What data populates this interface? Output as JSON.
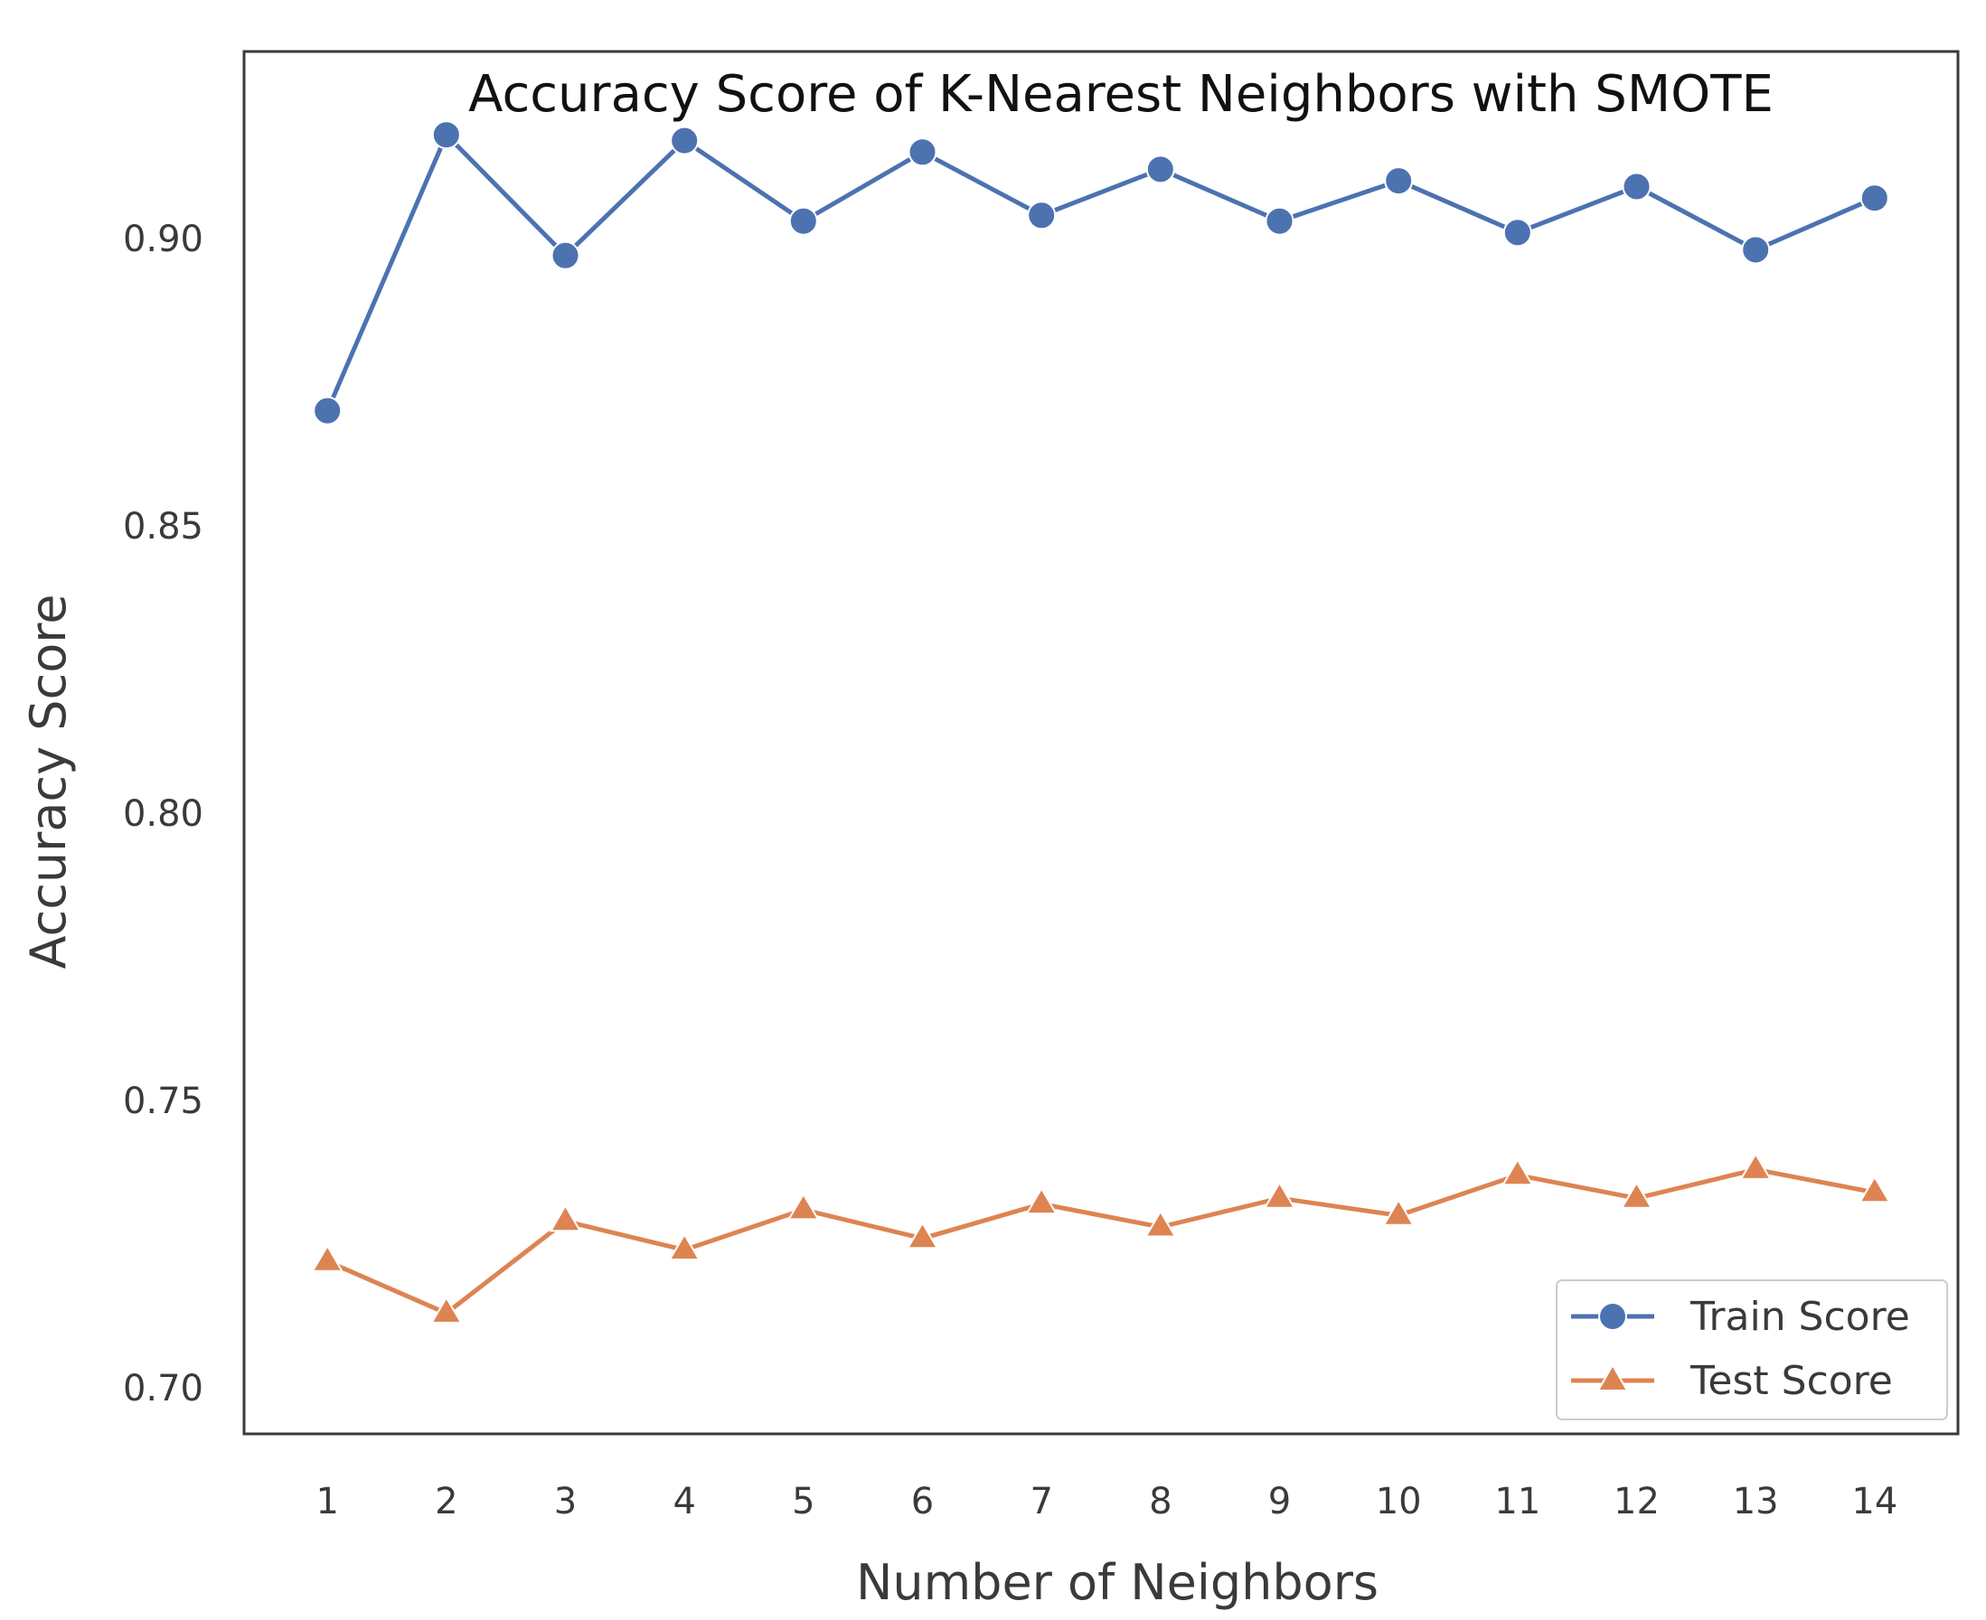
{
  "chart_data": {
    "type": "line",
    "title": "Accuracy Score of K-Nearest Neighbors with SMOTE",
    "xlabel": "Number of Neighbors",
    "ylabel": "Accuracy Score",
    "x": [
      1,
      2,
      3,
      4,
      5,
      6,
      7,
      8,
      9,
      10,
      11,
      12,
      13,
      14
    ],
    "x_tick_labels": [
      "1",
      "2",
      "3",
      "4",
      "5",
      "6",
      "7",
      "8",
      "9",
      "10",
      "11",
      "12",
      "13",
      "14"
    ],
    "y_ticks": [
      0.7,
      0.75,
      0.8,
      0.85,
      0.9
    ],
    "y_tick_labels": [
      "0.70",
      "0.75",
      "0.80",
      "0.85",
      "0.90"
    ],
    "xlim": [
      0.3,
      14.7
    ],
    "ylim": [
      0.692,
      0.9325
    ],
    "grid": false,
    "legend_position": "bottom-right",
    "series": [
      {
        "name": "Train Score",
        "marker": "circle",
        "color": "#4c72b0",
        "values": [
          0.87,
          0.918,
          0.897,
          0.917,
          0.903,
          0.915,
          0.904,
          0.912,
          0.903,
          0.91,
          0.901,
          0.909,
          0.898,
          0.907
        ]
      },
      {
        "name": "Test Score",
        "marker": "triangle",
        "color": "#dd8452",
        "values": [
          0.722,
          0.713,
          0.729,
          0.724,
          0.731,
          0.726,
          0.732,
          0.728,
          0.733,
          0.73,
          0.737,
          0.733,
          0.738,
          0.734
        ]
      }
    ]
  }
}
